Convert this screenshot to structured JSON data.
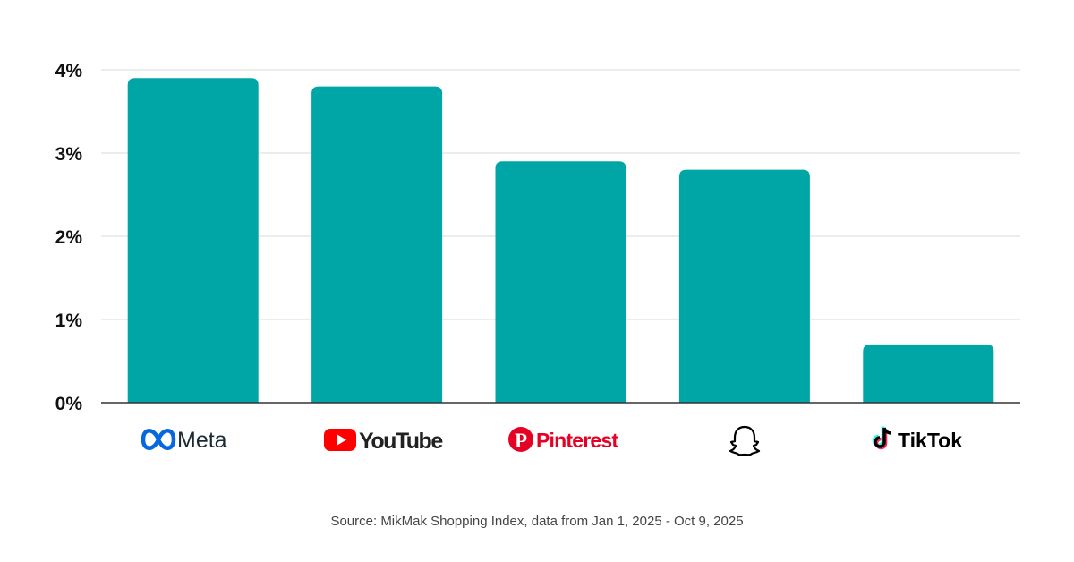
{
  "chart_data": {
    "type": "bar",
    "categories": [
      "Meta",
      "YouTube",
      "Pinterest",
      "Snapchat",
      "TikTok"
    ],
    "values": [
      3.9,
      3.8,
      2.9,
      2.8,
      0.7
    ],
    "ylim": [
      0,
      4
    ],
    "yticks": [
      "0%",
      "1%",
      "2%",
      "3%",
      "4%"
    ],
    "grid": true,
    "bar_color": "#00A6A6",
    "title": "",
    "xlabel": "",
    "ylabel": ""
  },
  "logos": [
    {
      "icon": "meta-infinity-icon",
      "label": "Meta",
      "color": "#0668E1"
    },
    {
      "icon": "youtube-play-icon",
      "label": "YouTube",
      "color": "#FF0000"
    },
    {
      "icon": "pinterest-p-icon",
      "label": "Pinterest",
      "color": "#E60023"
    },
    {
      "icon": "snapchat-ghost-icon",
      "label": "",
      "color": "#000000"
    },
    {
      "icon": "tiktok-note-icon",
      "label": "TikTok",
      "color": "#000000"
    }
  ],
  "source": "Source: MikMak Shopping Index, data from Jan 1, 2025 - Oct 9, 2025"
}
